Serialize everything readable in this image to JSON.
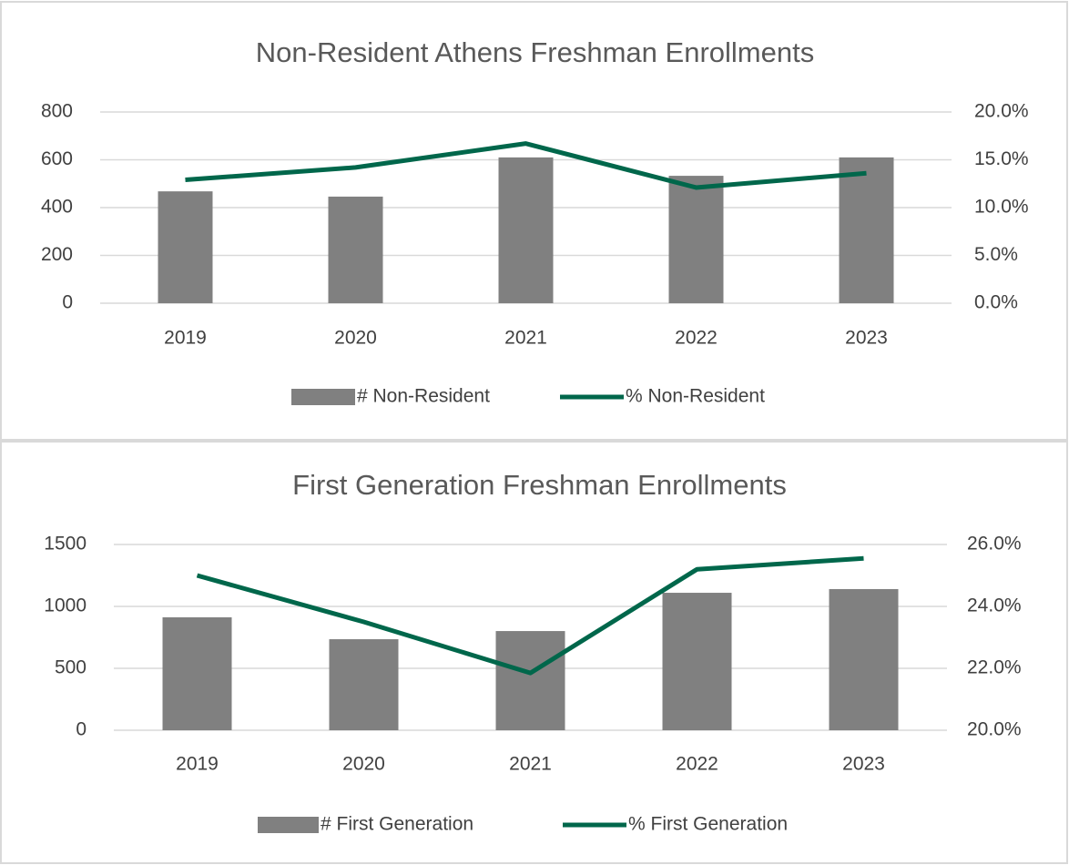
{
  "chart_data": [
    {
      "type": "combo",
      "title": "Non-Resident Athens Freshman Enrollments",
      "categories": [
        "2019",
        "2020",
        "2021",
        "2022",
        "2023"
      ],
      "series": [
        {
          "name": "# Non-Resident",
          "type": "bar",
          "color": "#808080",
          "values": [
            468,
            446,
            610,
            533,
            610
          ]
        },
        {
          "name": "% Non-Resident",
          "type": "line",
          "axis": "y2",
          "color": "#00674b",
          "values": [
            12.9,
            14.2,
            16.7,
            12.1,
            13.6
          ]
        }
      ],
      "ylim": [
        0,
        800
      ],
      "yticks": [
        0,
        200,
        400,
        600,
        800
      ],
      "y2lim": [
        0,
        20
      ],
      "y2ticks": [
        {
          "value": 0,
          "label": "0.0%"
        },
        {
          "value": 5,
          "label": "5.0%"
        },
        {
          "value": 10,
          "label": "10.0%"
        },
        {
          "value": 15,
          "label": "15.0%"
        },
        {
          "value": 20,
          "label": "20.0%"
        }
      ],
      "grid": true,
      "legend": "bottom"
    },
    {
      "type": "combo",
      "title": "First Generation Freshman Enrollments",
      "categories": [
        "2019",
        "2020",
        "2021",
        "2022",
        "2023"
      ],
      "series": [
        {
          "name": "# First Generation",
          "type": "bar",
          "color": "#808080",
          "values": [
            912,
            735,
            801,
            1110,
            1140
          ]
        },
        {
          "name": "% First Generation",
          "type": "line",
          "axis": "y2",
          "color": "#00674b",
          "values": [
            25.0,
            23.5,
            21.85,
            25.2,
            25.55
          ]
        }
      ],
      "ylim": [
        0,
        1500
      ],
      "yticks": [
        0,
        500,
        1000,
        1500
      ],
      "y2lim": [
        20,
        26
      ],
      "y2ticks": [
        {
          "value": 20,
          "label": "20.0%"
        },
        {
          "value": 22,
          "label": "22.0%"
        },
        {
          "value": 24,
          "label": "24.0%"
        },
        {
          "value": 26,
          "label": "26.0%"
        }
      ],
      "grid": true,
      "legend": "bottom"
    }
  ]
}
